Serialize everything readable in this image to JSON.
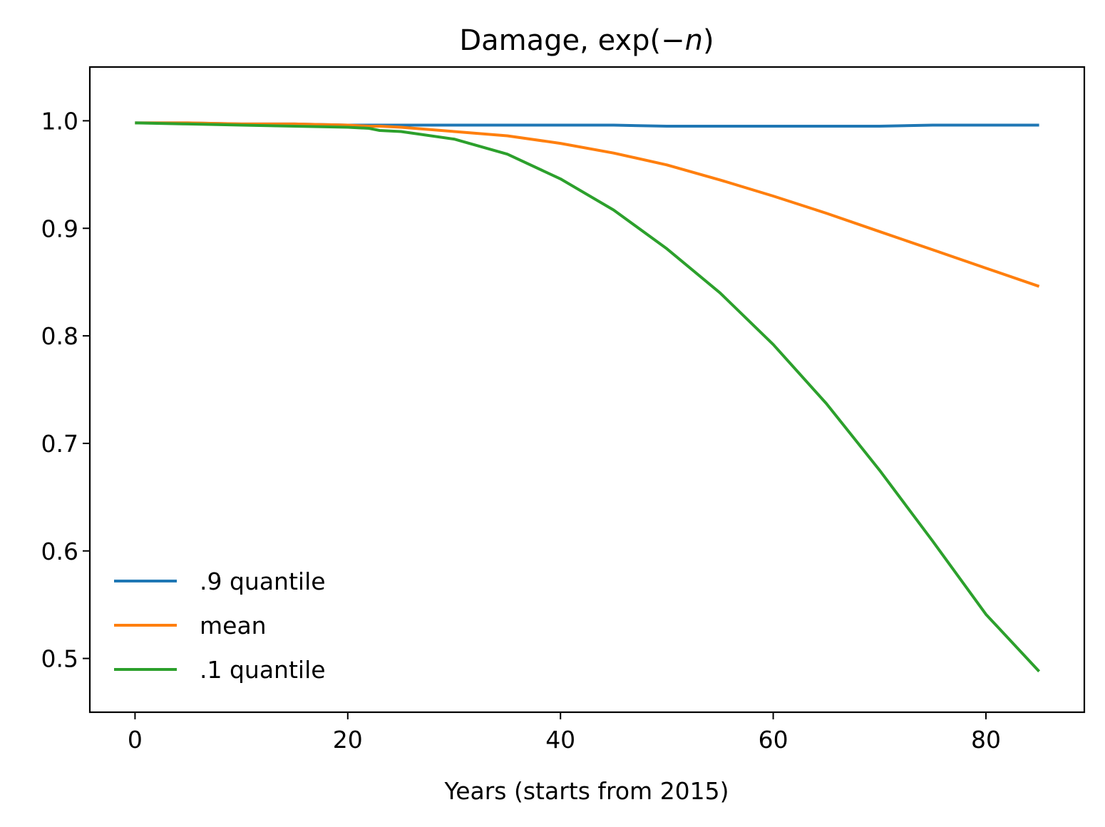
{
  "chart_data": {
    "type": "line",
    "title": "Damage, exp(−n)",
    "title_parts": {
      "prefix": "Damage, exp(",
      "minus": "−",
      "var": "n",
      "suffix": ")"
    },
    "xlabel": "Years (starts from 2015)",
    "ylabel": "",
    "xlim": [
      -4.25,
      89.25
    ],
    "ylim": [
      0.45,
      1.05
    ],
    "xticks": [
      0,
      20,
      40,
      60,
      80
    ],
    "xtick_labels": [
      "0",
      "20",
      "40",
      "60",
      "80"
    ],
    "yticks": [
      0.5,
      0.6,
      0.7,
      0.8,
      0.9,
      1.0
    ],
    "ytick_labels": [
      "0.5",
      "0.6",
      "0.7",
      "0.8",
      "0.9",
      "1.0"
    ],
    "grid": false,
    "legend_position": "lower-left",
    "x": [
      0,
      5,
      10,
      15,
      20,
      22,
      23,
      25,
      30,
      35,
      40,
      45,
      50,
      55,
      60,
      65,
      70,
      75,
      80,
      85
    ],
    "series": [
      {
        "name": ".9 quantile",
        "color": "#1f77b4",
        "values": [
          0.998,
          0.998,
          0.997,
          0.997,
          0.996,
          0.996,
          0.996,
          0.996,
          0.996,
          0.996,
          0.996,
          0.996,
          0.995,
          0.995,
          0.995,
          0.995,
          0.995,
          0.996,
          0.996,
          0.996
        ]
      },
      {
        "name": "mean",
        "color": "#ff7f0e",
        "values": [
          0.998,
          0.998,
          0.997,
          0.997,
          0.996,
          0.995,
          0.995,
          0.994,
          0.99,
          0.986,
          0.979,
          0.97,
          0.959,
          0.945,
          0.93,
          0.914,
          0.897,
          0.88,
          0.863,
          0.846
        ]
      },
      {
        "name": ".1 quantile",
        "color": "#2ca02c",
        "values": [
          0.998,
          0.997,
          0.996,
          0.995,
          0.994,
          0.993,
          0.991,
          0.99,
          0.983,
          0.969,
          0.946,
          0.917,
          0.881,
          0.84,
          0.792,
          0.737,
          0.675,
          0.609,
          0.541,
          0.488
        ]
      }
    ]
  }
}
